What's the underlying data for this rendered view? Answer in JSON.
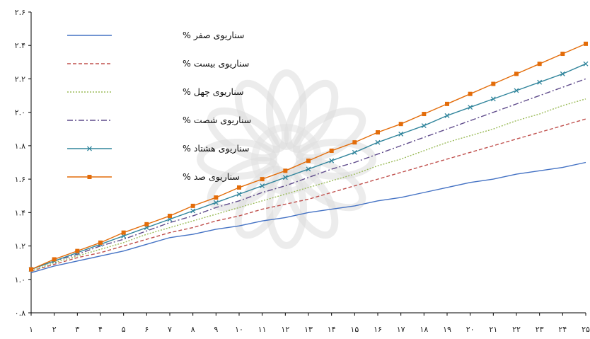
{
  "chart_data": {
    "type": "line",
    "title": "",
    "xlabel": "",
    "ylabel": "",
    "categories": [
      "۱",
      "۲",
      "۳",
      "۴",
      "۵",
      "۶",
      "۷",
      "۸",
      "۹",
      "۱۰",
      "۱۱",
      "۱۲",
      "۱۳",
      "۱۴",
      "۱۵",
      "۱۶",
      "۱۷",
      "۱۸",
      "۱۹",
      "۲۰",
      "۲۱",
      "۲۲",
      "۲۳",
      "۲۴",
      "۲۵"
    ],
    "x": [
      1,
      2,
      3,
      4,
      5,
      6,
      7,
      8,
      9,
      10,
      11,
      12,
      13,
      14,
      15,
      16,
      17,
      18,
      19,
      20,
      21,
      22,
      23,
      24,
      25
    ],
    "ylim": [
      0.8,
      2.6
    ],
    "yticks": [
      0.8,
      1.0,
      1.2,
      1.4,
      1.6,
      1.8,
      2.0,
      2.2,
      2.4,
      2.6
    ],
    "ytick_labels": [
      "۰.۸",
      "۱.۰",
      "۱.۲",
      "۱.۴",
      "۱.۶",
      "۱.۸",
      "۲.۰",
      "۲.۲",
      "۲.۴",
      "۲.۶"
    ],
    "grid": false,
    "legend_position": "top-left",
    "series": [
      {
        "name": "سناریوی صفر %",
        "color": "#4472C4",
        "style": "solid",
        "marker": "none",
        "values": [
          1.04,
          1.08,
          1.11,
          1.14,
          1.17,
          1.21,
          1.25,
          1.27,
          1.3,
          1.32,
          1.35,
          1.37,
          1.4,
          1.42,
          1.44,
          1.47,
          1.49,
          1.52,
          1.55,
          1.58,
          1.6,
          1.63,
          1.65,
          1.67,
          1.7
        ]
      },
      {
        "name": "سناریوی بیست %",
        "color": "#C0504D",
        "style": "dashed",
        "marker": "none",
        "values": [
          1.05,
          1.09,
          1.13,
          1.16,
          1.2,
          1.24,
          1.28,
          1.31,
          1.35,
          1.38,
          1.42,
          1.45,
          1.48,
          1.52,
          1.56,
          1.6,
          1.64,
          1.68,
          1.72,
          1.76,
          1.8,
          1.84,
          1.88,
          1.92,
          1.96
        ]
      },
      {
        "name": "سناریوی چهل %",
        "color": "#9BBB59",
        "style": "dotted",
        "marker": "none",
        "values": [
          1.05,
          1.1,
          1.14,
          1.18,
          1.22,
          1.27,
          1.31,
          1.35,
          1.39,
          1.43,
          1.47,
          1.51,
          1.55,
          1.59,
          1.63,
          1.68,
          1.72,
          1.77,
          1.82,
          1.86,
          1.9,
          1.95,
          1.99,
          2.04,
          2.08
        ]
      },
      {
        "name": "سناریوی شصت %",
        "color": "#5F4B8B",
        "style": "dashdot",
        "marker": "none",
        "values": [
          1.06,
          1.11,
          1.15,
          1.2,
          1.24,
          1.29,
          1.34,
          1.38,
          1.43,
          1.47,
          1.52,
          1.56,
          1.61,
          1.66,
          1.7,
          1.75,
          1.8,
          1.85,
          1.9,
          1.95,
          2.0,
          2.05,
          2.1,
          2.15,
          2.2
        ]
      },
      {
        "name": "سناریوی هشتاد %",
        "color": "#31859C",
        "style": "solid",
        "marker": "x",
        "values": [
          1.06,
          1.11,
          1.16,
          1.21,
          1.26,
          1.31,
          1.36,
          1.41,
          1.46,
          1.51,
          1.56,
          1.61,
          1.66,
          1.71,
          1.76,
          1.82,
          1.87,
          1.92,
          1.98,
          2.03,
          2.08,
          2.13,
          2.18,
          2.23,
          2.29
        ]
      },
      {
        "name": "سناریوی صد %",
        "color": "#E36C09",
        "style": "solid",
        "marker": "square",
        "values": [
          1.06,
          1.12,
          1.17,
          1.22,
          1.28,
          1.33,
          1.38,
          1.44,
          1.49,
          1.55,
          1.6,
          1.65,
          1.71,
          1.77,
          1.82,
          1.88,
          1.93,
          1.99,
          2.05,
          2.11,
          2.17,
          2.23,
          2.29,
          2.35,
          2.41
        ]
      }
    ]
  }
}
